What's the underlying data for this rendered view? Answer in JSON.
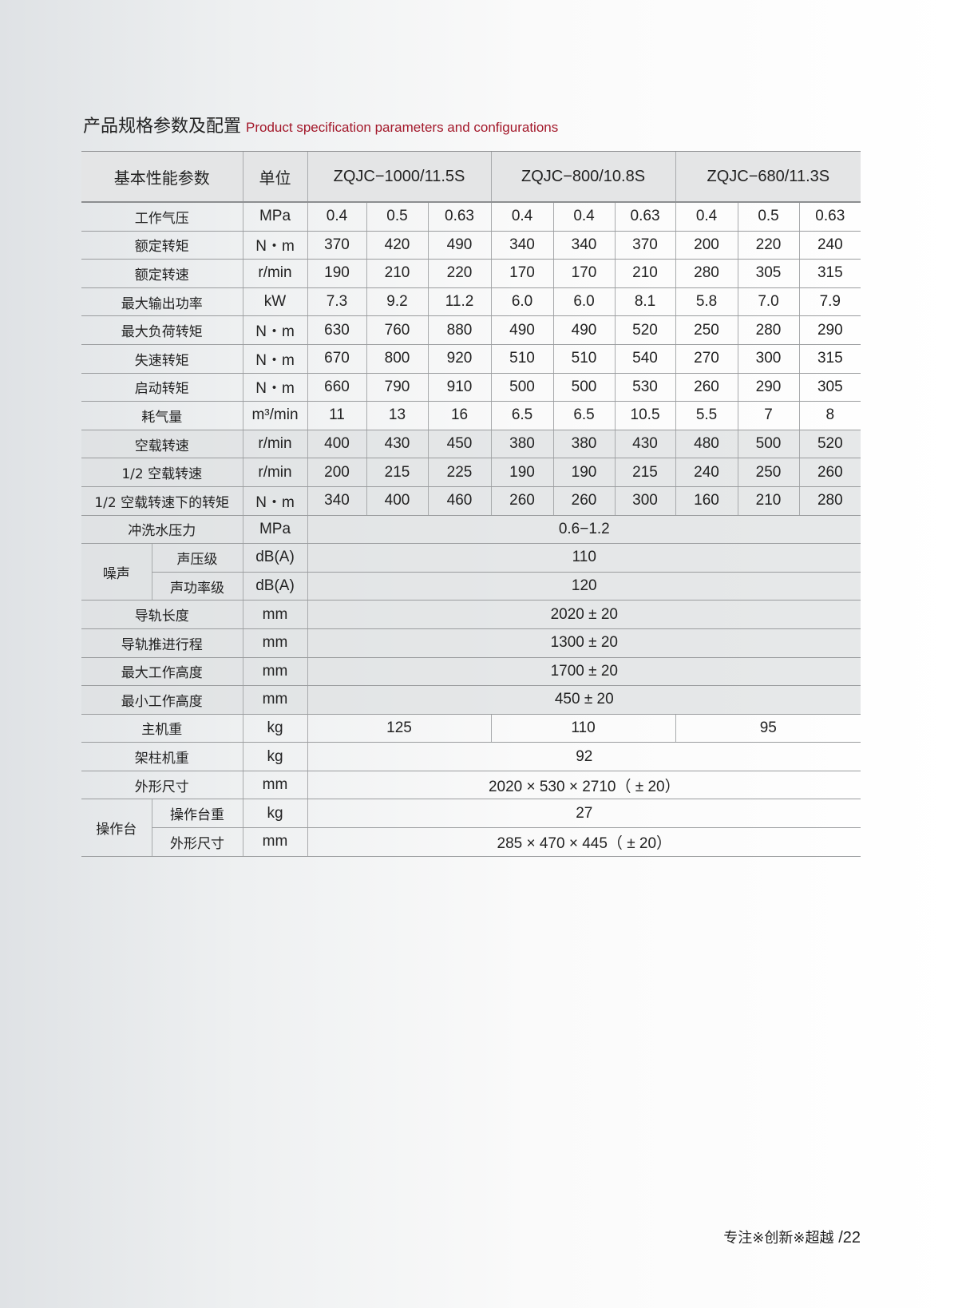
{
  "title": {
    "zh": "产品规格参数及配置",
    "en": "Product specification parameters and configurations"
  },
  "header": {
    "param": "基本性能参数",
    "unit": "单位",
    "models": [
      "ZQJC−1000/11.5S",
      "ZQJC−800/10.8S",
      "ZQJC−680/11.3S"
    ]
  },
  "rows": [
    {
      "name": "工作气压",
      "unit": "MPa",
      "values": [
        "0.4",
        "0.5",
        "0.63",
        "0.4",
        "0.4",
        "0.63",
        "0.4",
        "0.5",
        "0.63"
      ]
    },
    {
      "name": "额定转矩",
      "unit": "N・m",
      "values": [
        "370",
        "420",
        "490",
        "340",
        "340",
        "370",
        "200",
        "220",
        "240"
      ]
    },
    {
      "name": "额定转速",
      "unit": "r/min",
      "values": [
        "190",
        "210",
        "220",
        "170",
        "170",
        "210",
        "280",
        "305",
        "315"
      ]
    },
    {
      "name": "最大输出功率",
      "unit": "kW",
      "values": [
        "7.3",
        "9.2",
        "11.2",
        "6.0",
        "6.0",
        "8.1",
        "5.8",
        "7.0",
        "7.9"
      ]
    },
    {
      "name": "最大负荷转矩",
      "unit": "N・m",
      "values": [
        "630",
        "760",
        "880",
        "490",
        "490",
        "520",
        "250",
        "280",
        "290"
      ]
    },
    {
      "name": "失速转矩",
      "unit": "N・m",
      "values": [
        "670",
        "800",
        "920",
        "510",
        "510",
        "540",
        "270",
        "300",
        "315"
      ]
    },
    {
      "name": "启动转矩",
      "unit": "N・m",
      "values": [
        "660",
        "790",
        "910",
        "500",
        "500",
        "530",
        "260",
        "290",
        "305"
      ]
    },
    {
      "name": "耗气量",
      "unit": "m³/min",
      "values": [
        "11",
        "13",
        "16",
        "6.5",
        "6.5",
        "10.5",
        "5.5",
        "7",
        "8"
      ]
    },
    {
      "name": "空载转速",
      "unit": "r/min",
      "values": [
        "400",
        "430",
        "450",
        "380",
        "380",
        "430",
        "480",
        "500",
        "520"
      ]
    },
    {
      "name": "1/2 空载转速",
      "unit": "r/min",
      "values": [
        "200",
        "215",
        "225",
        "190",
        "190",
        "215",
        "240",
        "250",
        "260"
      ]
    },
    {
      "name": "1/2 空载转速下的转矩",
      "unit": "N・m",
      "values": [
        "340",
        "400",
        "460",
        "260",
        "260",
        "300",
        "160",
        "210",
        "280"
      ]
    }
  ],
  "flush": {
    "name": "冲洗水压力",
    "unit": "MPa",
    "value": "0.6−1.2"
  },
  "noise": {
    "name": "噪声",
    "sub": [
      {
        "name": "声压级",
        "unit": "dB(A)",
        "value": "110"
      },
      {
        "name": "声功率级",
        "unit": "dB(A)",
        "value": "120"
      }
    ]
  },
  "spans": [
    {
      "name": "导轨长度",
      "unit": "mm",
      "value": "2020 ± 20"
    },
    {
      "name": "导轨推进行程",
      "unit": "mm",
      "value": "1300 ± 20"
    },
    {
      "name": "最大工作高度",
      "unit": "mm",
      "value": "1700 ± 20"
    },
    {
      "name": "最小工作高度",
      "unit": "mm",
      "value": "450 ± 20"
    }
  ],
  "host_weight": {
    "name": "主机重",
    "unit": "kg",
    "values": [
      "125",
      "110",
      "95"
    ]
  },
  "column_weight": {
    "name": "架柱机重",
    "unit": "kg",
    "value": "92"
  },
  "dimensions": {
    "name": "外形尺寸",
    "unit": "mm",
    "value": "2020 × 530 × 2710（ ± 20）"
  },
  "console": {
    "name": "操作台",
    "sub": [
      {
        "name": "操作台重",
        "unit": "kg",
        "value": "27"
      },
      {
        "name": "外形尺寸",
        "unit": "mm",
        "value": "285 × 470 × 445（ ± 20）"
      }
    ]
  },
  "footer": {
    "slogan": "专注※创新※超越",
    "page": "/22"
  }
}
